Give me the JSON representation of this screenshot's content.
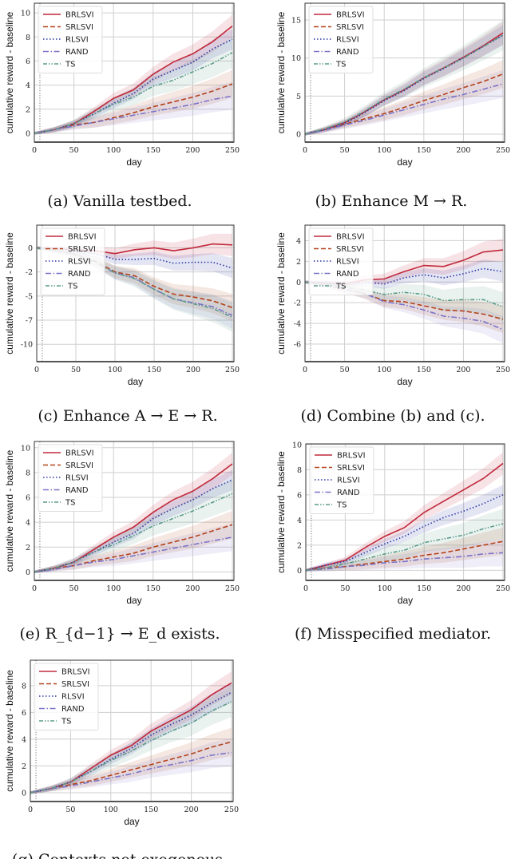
{
  "legend_entries": [
    "BRLSVI",
    "SRLSVI",
    "RLSVI",
    "RAND",
    "TS"
  ],
  "series_styles": {
    "BRLSVI": {
      "color": "#c0283a",
      "dash": "solid"
    },
    "SRLSVI": {
      "color": "#b4421a",
      "dash": "dashed"
    },
    "RLSVI": {
      "color": "#2b38a6",
      "dash": "dotted"
    },
    "RAND": {
      "color": "#7b74c9",
      "dash": "dash-dot"
    },
    "TS": {
      "color": "#5a9c88",
      "dash": "dash-dot-dot"
    }
  },
  "chart_data": [
    {
      "type": "line",
      "caption": "(a) Vanilla testbed.",
      "xlabel": "day",
      "ylabel": "cumulative reward - baseline",
      "x": [
        0,
        25,
        50,
        75,
        100,
        125,
        150,
        175,
        200,
        225,
        250
      ],
      "xlim": [
        0,
        252
      ],
      "xticks": [
        0,
        50,
        100,
        150,
        200,
        250
      ],
      "ylim": [
        -0.73,
        10.8
      ],
      "yticks": [
        0,
        2,
        4,
        6,
        8,
        10
      ],
      "ytick_labels": [
        "0",
        "2",
        "4",
        "6",
        "8",
        "10"
      ],
      "grid": true,
      "legend": "top-left",
      "vline_x": 7,
      "series": [
        {
          "name": "BRLSVI",
          "values": [
            0,
            0.3,
            0.8,
            1.8,
            2.9,
            3.6,
            4.9,
            5.9,
            6.6,
            7.6,
            8.9
          ]
        },
        {
          "name": "SRLSVI",
          "values": [
            0,
            0.3,
            0.7,
            0.9,
            1.3,
            1.7,
            2.2,
            2.6,
            3.0,
            3.5,
            4.1
          ]
        },
        {
          "name": "RLSVI",
          "values": [
            0,
            0.3,
            0.8,
            1.6,
            2.5,
            3.3,
            4.5,
            5.2,
            5.9,
            7.0,
            7.8
          ]
        },
        {
          "name": "RAND",
          "values": [
            0,
            0.3,
            0.6,
            0.9,
            1.2,
            1.5,
            1.8,
            2.1,
            2.4,
            2.8,
            3.1
          ]
        },
        {
          "name": "TS",
          "values": [
            0,
            0.3,
            0.8,
            1.6,
            2.4,
            3.0,
            3.9,
            4.4,
            5.1,
            5.8,
            6.7
          ]
        }
      ]
    },
    {
      "type": "line",
      "caption": "(b) Enhance M → R.",
      "xlabel": "day",
      "ylabel": "cumulative reward - baseline",
      "x": [
        0,
        25,
        50,
        75,
        100,
        125,
        150,
        175,
        200,
        225,
        250
      ],
      "xlim": [
        0,
        252
      ],
      "xticks": [
        0,
        50,
        100,
        150,
        200,
        250
      ],
      "ylim": [
        -1.05,
        17.2
      ],
      "yticks": [
        0,
        5,
        10,
        15
      ],
      "ytick_labels": [
        "0",
        "5",
        "10",
        "15"
      ],
      "grid": true,
      "legend": "top-left",
      "vline_x": 7,
      "series": [
        {
          "name": "BRLSVI",
          "values": [
            0,
            0.6,
            1.5,
            2.9,
            4.5,
            5.8,
            7.4,
            8.7,
            10.1,
            11.6,
            13.3
          ]
        },
        {
          "name": "SRLSVI",
          "values": [
            0,
            0.6,
            1.3,
            2.0,
            2.7,
            3.5,
            4.4,
            5.2,
            6.1,
            6.9,
            7.9
          ]
        },
        {
          "name": "RLSVI",
          "values": [
            0,
            0.6,
            1.4,
            2.8,
            4.4,
            5.7,
            7.3,
            8.6,
            10.0,
            11.5,
            13.0
          ]
        },
        {
          "name": "RAND",
          "values": [
            0,
            0.5,
            1.2,
            1.8,
            2.5,
            3.2,
            3.9,
            4.6,
            5.2,
            5.9,
            6.6
          ]
        },
        {
          "name": "TS",
          "values": [
            0,
            0.7,
            1.6,
            3.0,
            4.6,
            5.9,
            7.4,
            8.7,
            10.0,
            11.5,
            13.0
          ]
        }
      ]
    },
    {
      "type": "line",
      "caption": "(c) Enhance A → E → R.",
      "xlabel": "day",
      "ylabel": "cumulative reward - baseline",
      "x": [
        0,
        25,
        50,
        75,
        100,
        125,
        150,
        175,
        200,
        225,
        250
      ],
      "xlim": [
        0,
        252
      ],
      "xticks": [
        0,
        50,
        100,
        150,
        200,
        250
      ],
      "ylim": [
        -11.8,
        2.35
      ],
      "yticks": [
        0,
        -2.5,
        -5,
        -7.5,
        -10
      ],
      "ytick_labels": [
        "0",
        "-2",
        "-5",
        "-7",
        "-10"
      ],
      "grid": true,
      "legend": "top-left",
      "vline_x": 7,
      "series": [
        {
          "name": "BRLSVI",
          "values": [
            0,
            -0.1,
            -0.2,
            -0.3,
            -0.6,
            -0.2,
            0,
            -0.3,
            0,
            0.4,
            0.3
          ]
        },
        {
          "name": "SRLSVI",
          "values": [
            0,
            -0.3,
            -0.7,
            -1.4,
            -2.5,
            -2.9,
            -4.0,
            -4.8,
            -5.1,
            -5.5,
            -6.2
          ]
        },
        {
          "name": "RLSVI",
          "values": [
            0,
            -0.1,
            -0.3,
            -0.6,
            -1.2,
            -1.2,
            -1.1,
            -1.6,
            -1.5,
            -1.5,
            -2.1
          ]
        },
        {
          "name": "RAND",
          "values": [
            0,
            -0.3,
            -0.7,
            -1.5,
            -2.6,
            -3.1,
            -4.3,
            -5.3,
            -5.7,
            -6.1,
            -7.0
          ]
        },
        {
          "name": "TS",
          "values": [
            0,
            -0.3,
            -0.7,
            -1.5,
            -2.6,
            -3.2,
            -4.3,
            -5.3,
            -5.8,
            -6.3,
            -7.2
          ]
        }
      ]
    },
    {
      "type": "line",
      "caption": "(d) Combine (b) and (c).",
      "xlabel": "day",
      "ylabel": "cumulative reward - baseline",
      "x": [
        0,
        25,
        50,
        75,
        100,
        125,
        150,
        175,
        200,
        225,
        250
      ],
      "xlim": [
        0,
        252
      ],
      "xticks": [
        0,
        50,
        100,
        150,
        200,
        250
      ],
      "ylim": [
        -7.7,
        5.5
      ],
      "yticks": [
        -6,
        -4,
        -2,
        0,
        2,
        4
      ],
      "ytick_labels": [
        "-6",
        "-4",
        "-2",
        "0",
        "2",
        "4"
      ],
      "grid": true,
      "legend": "top-left",
      "vline_x": 7,
      "series": [
        {
          "name": "BRLSVI",
          "values": [
            0,
            -0.1,
            -0.2,
            0.2,
            0.3,
            1.0,
            1.6,
            1.5,
            2.1,
            2.9,
            3.1
          ]
        },
        {
          "name": "SRLSVI",
          "values": [
            0,
            -0.3,
            -0.7,
            -1.1,
            -1.8,
            -1.9,
            -2.3,
            -2.7,
            -2.8,
            -3.1,
            -3.6
          ]
        },
        {
          "name": "RLSVI",
          "values": [
            0,
            -0.1,
            -0.3,
            0,
            -0.2,
            0.4,
            0.7,
            0.4,
            0.8,
            1.3,
            1.0
          ]
        },
        {
          "name": "RAND",
          "values": [
            0,
            -0.3,
            -0.7,
            -1.1,
            -1.9,
            -2.2,
            -2.7,
            -3.3,
            -3.5,
            -3.8,
            -4.6
          ]
        },
        {
          "name": "TS",
          "values": [
            0,
            -0.2,
            -0.5,
            -0.8,
            -1.2,
            -1.0,
            -1.2,
            -1.8,
            -1.7,
            -1.7,
            -2.4
          ]
        }
      ]
    },
    {
      "type": "line",
      "caption": "(e) R_{d−1} → E_d exists.",
      "xlabel": "day",
      "ylabel": "cumulative reward - baseline",
      "x": [
        0,
        25,
        50,
        75,
        100,
        125,
        150,
        175,
        200,
        225,
        250
      ],
      "xlim": [
        0,
        252
      ],
      "xticks": [
        0,
        50,
        100,
        150,
        200,
        250
      ],
      "ylim": [
        -0.68,
        10.5
      ],
      "yticks": [
        0,
        2,
        4,
        6,
        8,
        10
      ],
      "ytick_labels": [
        "0",
        "2",
        "4",
        "6",
        "8",
        "10"
      ],
      "grid": true,
      "legend": "top-left",
      "vline_x": 7,
      "series": [
        {
          "name": "BRLSVI",
          "values": [
            0,
            0.3,
            0.8,
            1.8,
            2.8,
            3.6,
            4.8,
            5.8,
            6.5,
            7.5,
            8.7
          ]
        },
        {
          "name": "SRLSVI",
          "values": [
            0,
            0.3,
            0.5,
            0.9,
            1.2,
            1.5,
            2.0,
            2.4,
            2.8,
            3.3,
            3.8
          ]
        },
        {
          "name": "RLSVI",
          "values": [
            0,
            0.3,
            0.8,
            1.6,
            2.4,
            3.1,
            4.3,
            5.1,
            5.8,
            6.7,
            7.4
          ]
        },
        {
          "name": "RAND",
          "values": [
            0,
            0.2,
            0.5,
            0.8,
            1.0,
            1.3,
            1.6,
            1.9,
            2.2,
            2.5,
            2.8
          ]
        },
        {
          "name": "TS",
          "values": [
            0,
            0.3,
            0.8,
            1.6,
            2.2,
            2.9,
            3.7,
            4.3,
            4.9,
            5.6,
            6.3
          ]
        }
      ]
    },
    {
      "type": "line",
      "caption": "(f) Misspecified mediator.",
      "xlabel": "day",
      "ylabel": "cumulative reward - baseline",
      "x": [
        0,
        25,
        50,
        75,
        100,
        125,
        150,
        175,
        200,
        225,
        250
      ],
      "xlim": [
        0,
        252
      ],
      "xticks": [
        0,
        50,
        100,
        150,
        200,
        250
      ],
      "ylim": [
        -0.8,
        10.05
      ],
      "yticks": [
        0,
        2,
        4,
        6,
        8,
        10
      ],
      "ytick_labels": [
        "0",
        "2",
        "4",
        "6",
        "8",
        "10"
      ],
      "grid": true,
      "legend": "top-left",
      "vline_x": 7,
      "series": [
        {
          "name": "BRLSVI",
          "values": [
            0,
            0.4,
            0.8,
            1.8,
            2.7,
            3.4,
            4.6,
            5.5,
            6.4,
            7.3,
            8.5
          ]
        },
        {
          "name": "SRLSVI",
          "values": [
            0,
            0.2,
            0.3,
            0.5,
            0.7,
            0.9,
            1.2,
            1.4,
            1.7,
            2.0,
            2.3
          ]
        },
        {
          "name": "RLSVI",
          "values": [
            0,
            0.4,
            0.7,
            1.4,
            2.1,
            2.7,
            3.5,
            4.2,
            4.7,
            5.3,
            6.0
          ]
        },
        {
          "name": "RAND",
          "values": [
            0,
            0.1,
            0.3,
            0.4,
            0.6,
            0.7,
            0.9,
            1.0,
            1.1,
            1.3,
            1.4
          ]
        },
        {
          "name": "TS",
          "values": [
            0,
            0.2,
            0.5,
            0.9,
            1.3,
            1.6,
            2.2,
            2.5,
            2.8,
            3.3,
            3.7
          ]
        }
      ]
    },
    {
      "type": "line",
      "caption": "(g) Contexts not exogenous.",
      "xlabel": "day",
      "ylabel": "cumulative reward - baseline",
      "x": [
        0,
        25,
        50,
        75,
        100,
        125,
        150,
        175,
        200,
        225,
        250
      ],
      "xlim": [
        0,
        252
      ],
      "xticks": [
        0,
        50,
        100,
        150,
        200,
        250
      ],
      "ylim": [
        -0.66,
        9.9
      ],
      "yticks": [
        0,
        2,
        4,
        6,
        8
      ],
      "ytick_labels": [
        "0",
        "2",
        "4",
        "6",
        "8"
      ],
      "grid": true,
      "legend": "top-left",
      "vline_x": 7,
      "series": [
        {
          "name": "BRLSVI",
          "values": [
            0,
            0.3,
            0.8,
            1.8,
            2.8,
            3.5,
            4.6,
            5.4,
            6.2,
            7.3,
            8.2
          ]
        },
        {
          "name": "SRLSVI",
          "values": [
            0,
            0.3,
            0.6,
            0.9,
            1.3,
            1.7,
            2.1,
            2.5,
            2.9,
            3.4,
            3.8
          ]
        },
        {
          "name": "RLSVI",
          "values": [
            0,
            0.3,
            0.8,
            1.6,
            2.5,
            3.3,
            4.3,
            5.1,
            5.8,
            6.7,
            7.5
          ]
        },
        {
          "name": "RAND",
          "values": [
            0,
            0.3,
            0.5,
            0.8,
            1.1,
            1.4,
            1.8,
            2.1,
            2.4,
            2.8,
            3.0
          ]
        },
        {
          "name": "TS",
          "values": [
            0,
            0.3,
            0.8,
            1.6,
            2.4,
            3.1,
            3.9,
            4.6,
            5.2,
            6.1,
            6.8
          ]
        }
      ]
    }
  ]
}
